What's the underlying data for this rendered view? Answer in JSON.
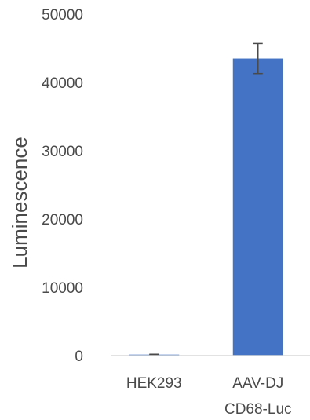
{
  "chart_data": {
    "type": "bar",
    "categories": [
      [
        "HEK293"
      ],
      [
        "AAV-DJ",
        "CD68-Luc"
      ]
    ],
    "values": [
      150,
      43500
    ],
    "error": [
      50,
      2200
    ],
    "title": "",
    "xlabel": "",
    "ylabel": "Luminescence",
    "ylim": [
      0,
      50000
    ],
    "yticks": [
      "0",
      "10000",
      "20000",
      "30000",
      "40000",
      "50000"
    ],
    "ytick_values": [
      0,
      10000,
      20000,
      30000,
      40000,
      50000
    ],
    "grid": false,
    "legend": "none",
    "colors": {
      "bar": "#4472c4",
      "axis": "#d9d9d9",
      "text": "#4a4a4a",
      "error": "#4a4a4a"
    }
  }
}
